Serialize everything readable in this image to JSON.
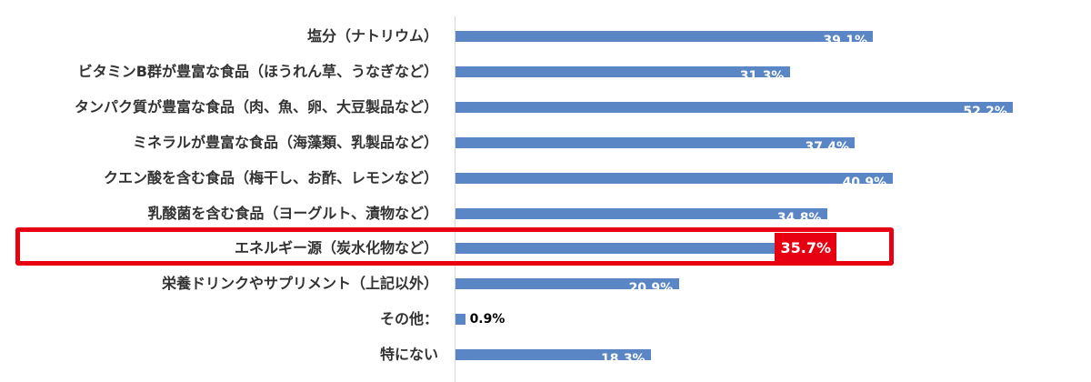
{
  "chart_data": {
    "type": "bar",
    "orientation": "horizontal",
    "categories": [
      "塩分（ナトリウム）",
      "ビタミンB群が豊富な食品（ほうれん草、うなぎなど）",
      "タンパク質が豊富な食品（肉、魚、卵、大豆製品など）",
      "ミネラルが豊富な食品（海藻類、乳製品など）",
      "クエン酸を含む食品（梅干し、お酢、レモンなど）",
      "乳酸菌を含む食品（ヨーグルト、漬物など）",
      "エネルギー源（炭水化物など）",
      "栄養ドリンクやサプリメント（上記以外）",
      "その他：",
      "特にない"
    ],
    "values": [
      39.1,
      31.3,
      52.2,
      37.4,
      40.9,
      34.8,
      35.7,
      20.9,
      0.9,
      18.3
    ],
    "value_labels": [
      "39.1%",
      "31.3%",
      "52.2%",
      "37.4%",
      "40.9%",
      "34.8%",
      "35.7%",
      "20.9%",
      "0.9%",
      "18.3%"
    ],
    "xlim": [
      0,
      60
    ],
    "highlighted_index": 6,
    "title": "",
    "xlabel": "",
    "ylabel": ""
  },
  "colors": {
    "bar": "#5b86c5",
    "highlight": "#e60012",
    "label": "#333333"
  }
}
